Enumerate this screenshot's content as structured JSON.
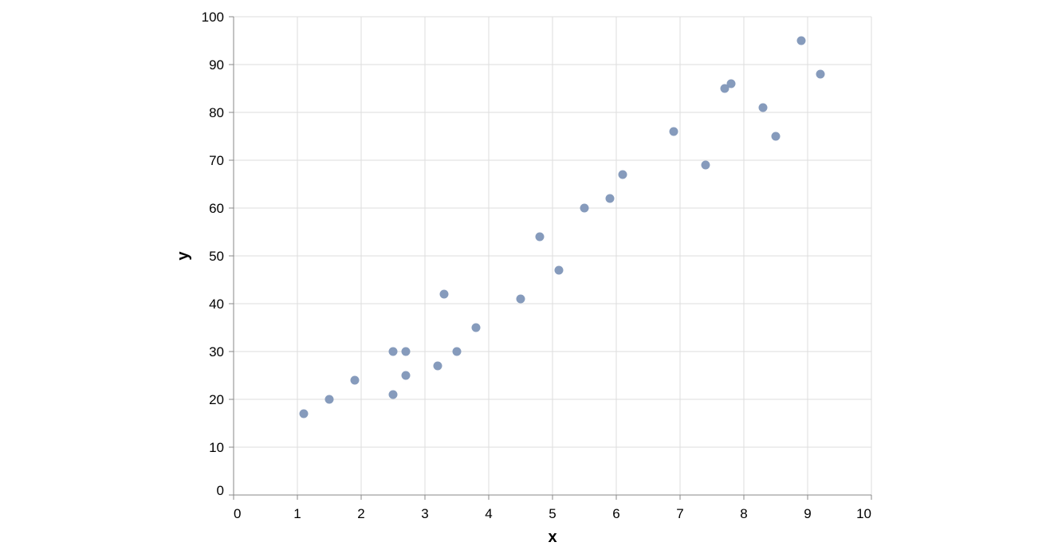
{
  "chart_data": {
    "type": "scatter",
    "title": "",
    "xlabel": "x",
    "ylabel": "y",
    "xlim": [
      0,
      10
    ],
    "ylim": [
      0,
      100
    ],
    "x_ticks": [
      0,
      1,
      2,
      3,
      4,
      5,
      6,
      7,
      8,
      9,
      10
    ],
    "y_ticks": [
      0,
      10,
      20,
      30,
      40,
      50,
      60,
      70,
      80,
      90,
      100
    ],
    "grid": true,
    "legend": "none",
    "point_color": "#7f96b8",
    "grid_color": "#dddddd",
    "axis_color": "#888888",
    "points": [
      {
        "x": 1.1,
        "y": 17
      },
      {
        "x": 1.5,
        "y": 20
      },
      {
        "x": 1.9,
        "y": 24
      },
      {
        "x": 2.5,
        "y": 21
      },
      {
        "x": 2.5,
        "y": 30
      },
      {
        "x": 2.7,
        "y": 30
      },
      {
        "x": 2.7,
        "y": 25
      },
      {
        "x": 3.2,
        "y": 27
      },
      {
        "x": 3.3,
        "y": 42
      },
      {
        "x": 3.5,
        "y": 30
      },
      {
        "x": 3.8,
        "y": 35
      },
      {
        "x": 4.5,
        "y": 41
      },
      {
        "x": 4.8,
        "y": 54
      },
      {
        "x": 5.1,
        "y": 47
      },
      {
        "x": 5.5,
        "y": 60
      },
      {
        "x": 5.9,
        "y": 62
      },
      {
        "x": 6.1,
        "y": 67
      },
      {
        "x": 6.9,
        "y": 76
      },
      {
        "x": 7.4,
        "y": 69
      },
      {
        "x": 7.7,
        "y": 85
      },
      {
        "x": 7.8,
        "y": 86
      },
      {
        "x": 8.3,
        "y": 81
      },
      {
        "x": 8.5,
        "y": 75
      },
      {
        "x": 8.9,
        "y": 95
      },
      {
        "x": 9.2,
        "y": 88
      }
    ]
  }
}
